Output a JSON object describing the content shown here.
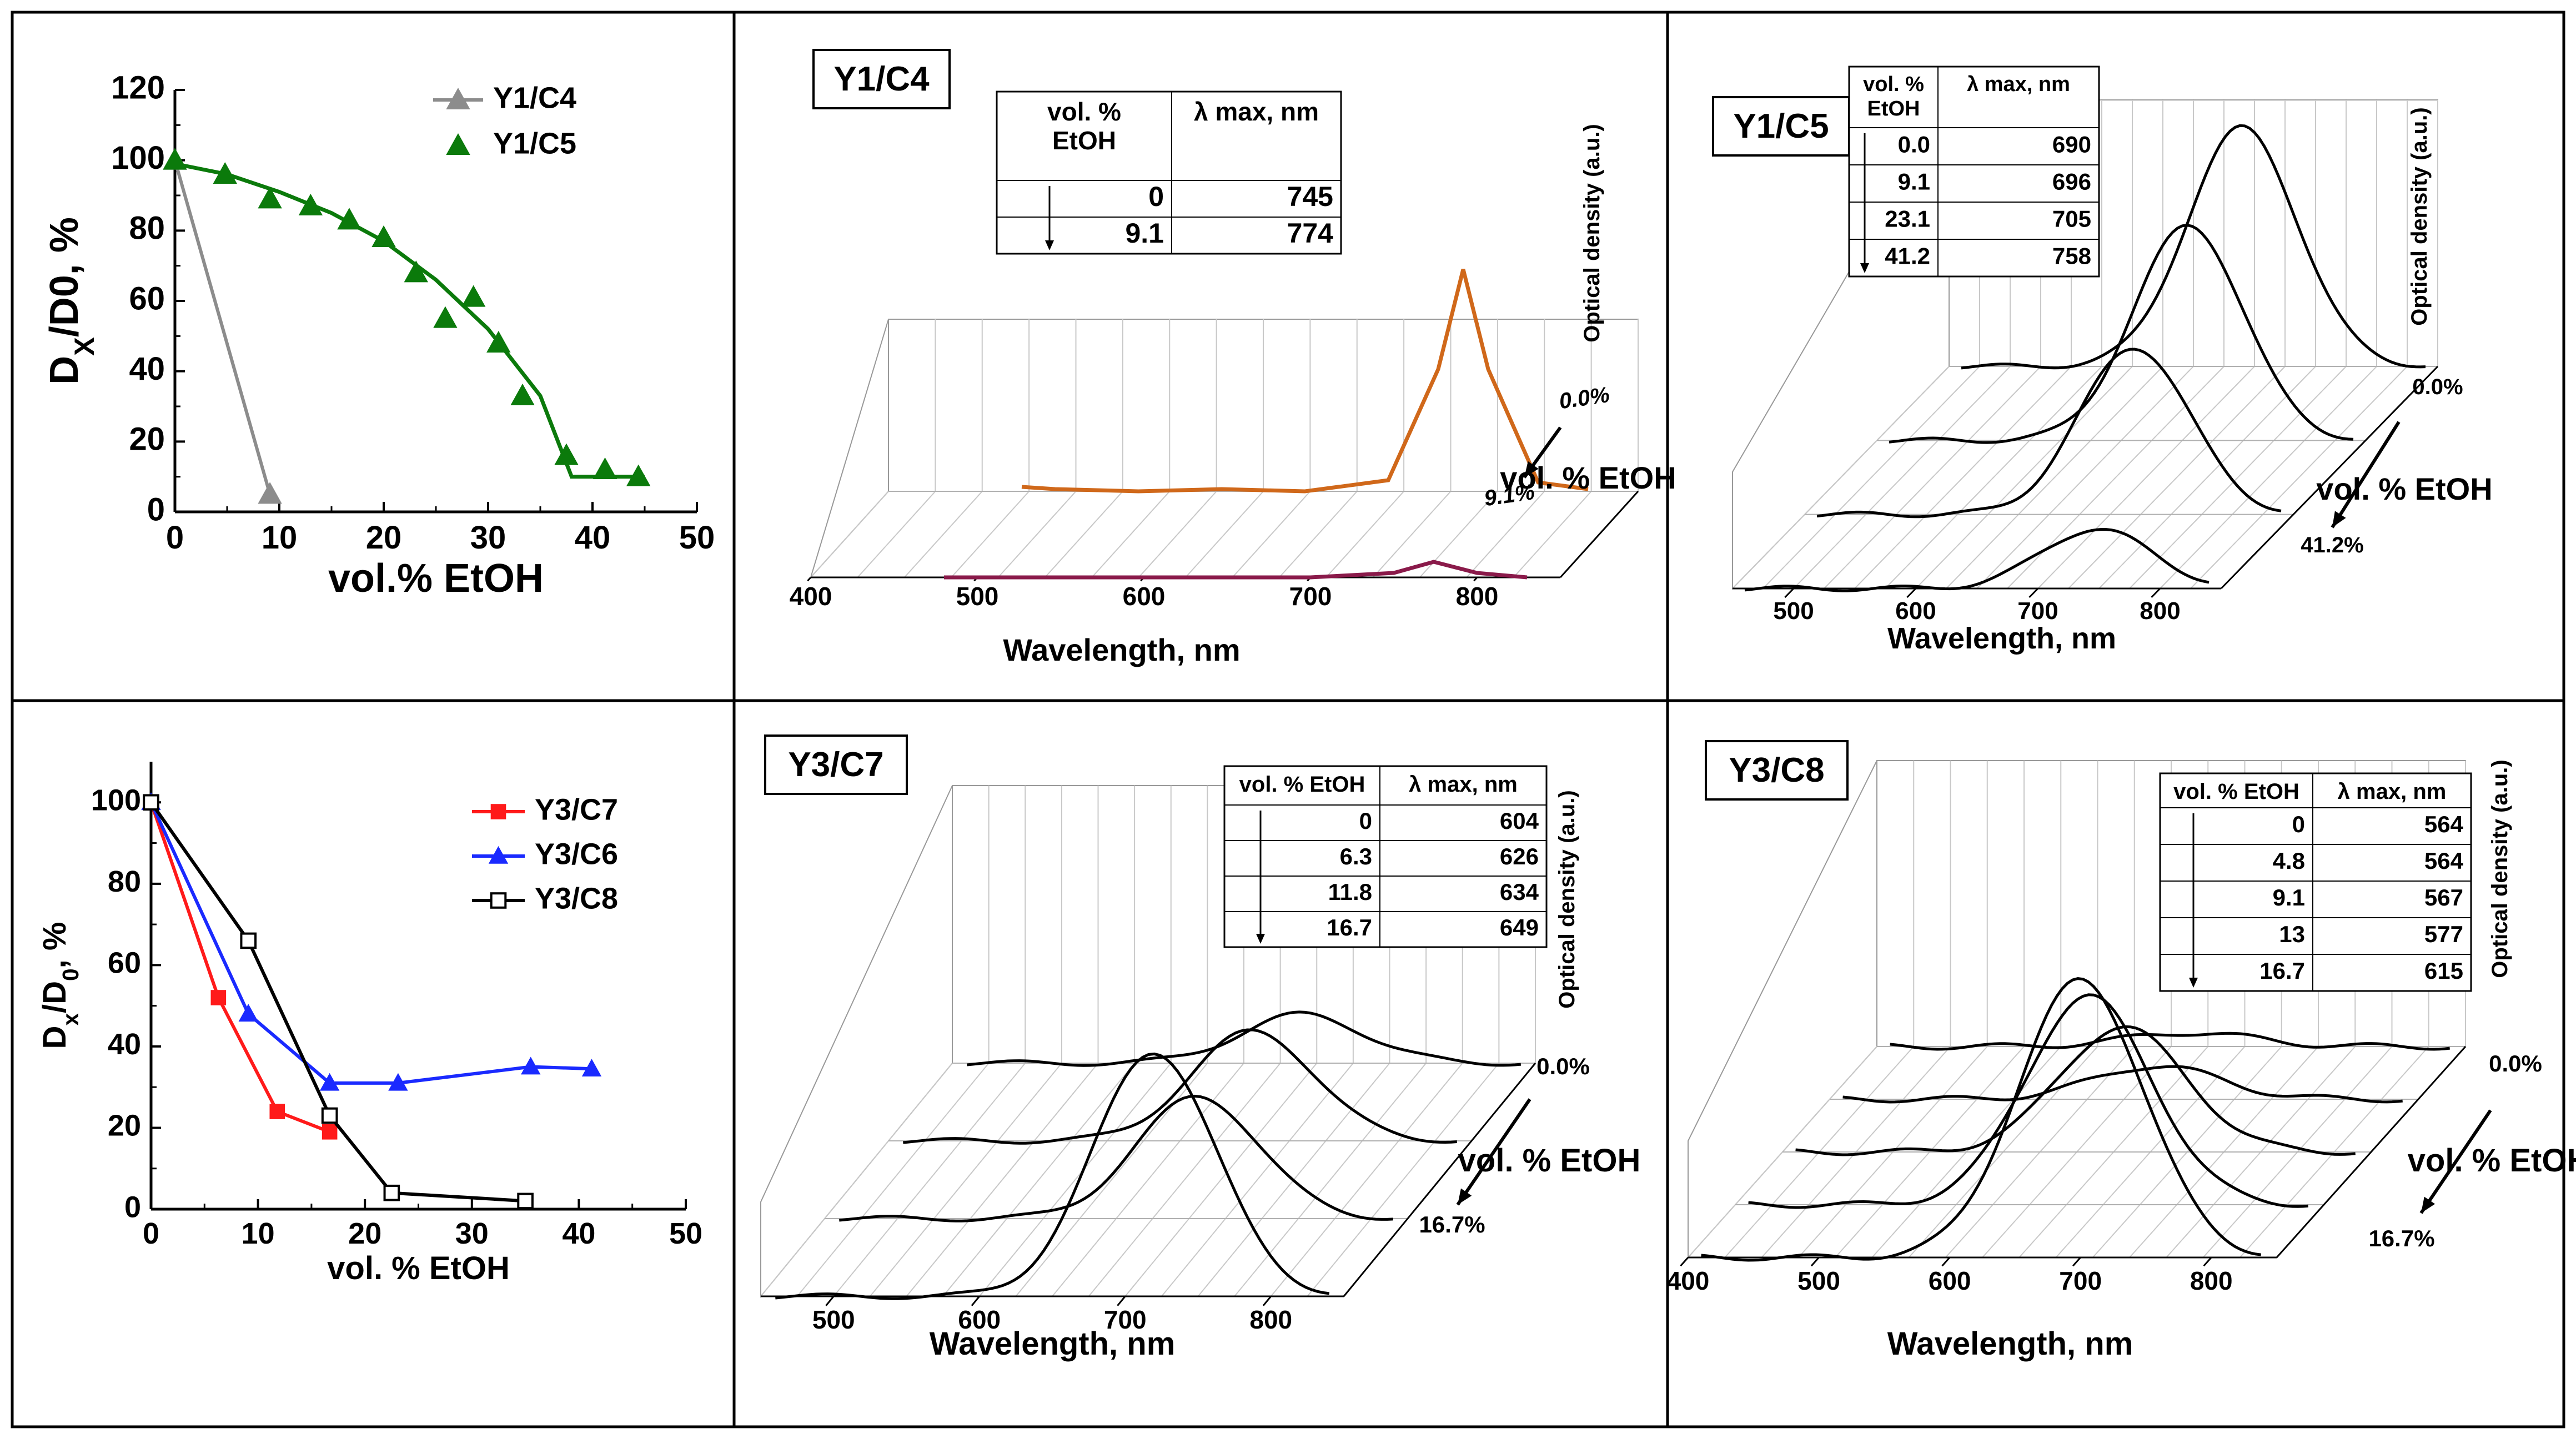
{
  "chart_data": [
    {
      "type": "line",
      "xlabel": "vol.% EtOH",
      "ylabel_main": "D",
      "ylabel_sub": "X",
      "ylabel_rest": "/D0, %",
      "xlim": [
        0,
        50
      ],
      "ylim": [
        0,
        120
      ],
      "xticks": [
        "0",
        "10",
        "20",
        "30",
        "40",
        "50"
      ],
      "yticks": [
        "0",
        "20",
        "40",
        "60",
        "80",
        "100",
        "120"
      ],
      "legend_position": "top-right",
      "series": [
        {
          "name": "Y1/C4",
          "color": "#8c8c8c",
          "marker": "triangle",
          "x": [
            0,
            9.1
          ],
          "y": [
            100,
            5
          ]
        },
        {
          "name": "Y1/C5",
          "color": "#0b7a0b",
          "marker": "triangle",
          "x": [
            0,
            4.8,
            9.1,
            13,
            16.7,
            20,
            23.1,
            25.9,
            28.6,
            31,
            33.3,
            37.5,
            41.2,
            44.4
          ],
          "y": [
            100,
            96,
            89,
            87,
            83,
            78,
            68,
            55,
            61,
            48,
            33,
            16,
            12,
            10
          ],
          "fit_x": [
            0,
            5,
            10,
            15,
            20,
            25,
            30,
            35,
            38,
            45
          ],
          "fit_y": [
            99,
            96,
            91,
            85,
            77,
            66,
            52,
            33,
            10,
            10
          ]
        }
      ]
    },
    {
      "type": "line",
      "title": "Y1/C4",
      "xlabel": "Wavelength, nm",
      "zlabel": "Optical density (a.u.)",
      "depth_label": "vol. % EtOH",
      "xlim": [
        400,
        850
      ],
      "xticks": [
        "400",
        "500",
        "600",
        "700",
        "800"
      ],
      "depth_start_label": "0.0%",
      "depth_end_label": "9.1%",
      "table": {
        "headers": [
          "vol. %\nEtOH",
          "λ max, nm"
        ],
        "rows": [
          [
            "0",
            "745"
          ],
          [
            "9.1",
            "774"
          ]
        ]
      },
      "series": [
        {
          "label": "0.0%",
          "color": "#d0681a",
          "peak_nm": 745,
          "peak_od": 1.0,
          "x": [
            480,
            500,
            550,
            600,
            650,
            700,
            730,
            745,
            760,
            790,
            820
          ],
          "y": [
            0.02,
            0.01,
            0.0,
            0.01,
            0.0,
            0.05,
            0.55,
            1.0,
            0.55,
            0.04,
            0.01
          ]
        },
        {
          "label": "9.1%",
          "color": "#8a1a4a",
          "peak_nm": 774,
          "peak_od": 0.07,
          "x": [
            480,
            550,
            600,
            650,
            700,
            750,
            774,
            800,
            830
          ],
          "y": [
            0.0,
            0.0,
            0.0,
            0.0,
            0.0,
            0.02,
            0.07,
            0.02,
            0.0
          ]
        }
      ]
    },
    {
      "type": "line",
      "title": "Y1/C5",
      "xlabel": "Wavelength, nm",
      "zlabel": "Optical density (a.u.)",
      "depth_label": "vol. % EtOH",
      "xlim": [
        450,
        850
      ],
      "xticks": [
        "500",
        "600",
        "700",
        "800"
      ],
      "depth_start_label": "0.0%",
      "depth_end_label": "41.2%",
      "table": {
        "headers": [
          "vol. %\nEtOH",
          "λ max, nm"
        ],
        "rows": [
          [
            "0.0",
            "690"
          ],
          [
            "9.1",
            "696"
          ],
          [
            "23.1",
            "705"
          ],
          [
            "41.2",
            "758"
          ]
        ]
      },
      "series": [
        {
          "label": "0.0",
          "color": "#000000",
          "peak_nm": 690,
          "peak_od": 1.0
        },
        {
          "label": "9.1",
          "color": "#000000",
          "peak_nm": 696,
          "peak_od": 0.9
        },
        {
          "label": "23.1",
          "color": "#000000",
          "peak_nm": 705,
          "peak_od": 0.7
        },
        {
          "label": "41.2",
          "color": "#000000",
          "peak_nm": 758,
          "peak_od": 0.25
        }
      ]
    },
    {
      "type": "line",
      "xlabel": "vol. % EtOH",
      "ylabel_main": "D",
      "ylabel_sub": "x",
      "ylabel_rest": "/D",
      "ylabel_sub2": "0",
      "ylabel_tail": ", %",
      "xlim": [
        0,
        50
      ],
      "ylim": [
        0,
        110
      ],
      "xticks": [
        "0",
        "10",
        "20",
        "30",
        "40",
        "50"
      ],
      "yticks": [
        "0",
        "20",
        "40",
        "60",
        "80",
        "100"
      ],
      "legend_position": "top-right",
      "series": [
        {
          "name": "Y3/C7",
          "color": "#ff1a1a",
          "marker": "square",
          "x": [
            0,
            6.3,
            11.8,
            16.7
          ],
          "y": [
            100,
            52,
            24,
            19
          ]
        },
        {
          "name": "Y3/C6",
          "color": "#1a2aff",
          "marker": "triangle",
          "x": [
            0,
            9.1,
            16.7,
            23.1,
            35.5,
            41.2
          ],
          "y": [
            100,
            48,
            31,
            31,
            35,
            34.5
          ]
        },
        {
          "name": "Y3/C8",
          "color": "#000000",
          "marker": "open-square",
          "x": [
            0,
            9.1,
            16.7,
            22.5,
            35
          ],
          "y": [
            100,
            66,
            23,
            4,
            2
          ]
        }
      ]
    },
    {
      "type": "line",
      "title": "Y3/C7",
      "xlabel": "Wavelength, nm",
      "zlabel": "Optical density (a.u.)",
      "depth_label": "vol. % EtOH",
      "xlim": [
        450,
        850
      ],
      "xticks": [
        "500",
        "600",
        "700",
        "800"
      ],
      "depth_start_label": "0.0%",
      "depth_end_label": "16.7%",
      "table": {
        "headers": [
          "vol. % EtOH",
          "λ max, nm"
        ],
        "rows": [
          [
            "0",
            "604"
          ],
          [
            "6.3",
            "626"
          ],
          [
            "11.8",
            "634"
          ],
          [
            "16.7",
            "649"
          ]
        ]
      },
      "series": [
        {
          "label": "0",
          "color": "#000000",
          "peak_nm": 604,
          "peak_od": 0.2
        },
        {
          "label": "6.3",
          "color": "#000000",
          "peak_nm": 626,
          "peak_od": 0.45
        },
        {
          "label": "11.8",
          "color": "#000000",
          "peak_nm": 634,
          "peak_od": 0.5
        },
        {
          "label": "16.7",
          "color": "#000000",
          "peak_nm": 649,
          "peak_od": 1.0
        }
      ]
    },
    {
      "type": "line",
      "title": "Y3/C8",
      "xlabel": "Wavelength, nm",
      "zlabel": "Optical density (a.u.)",
      "depth_label": "vol. % EtOH",
      "xlim": [
        400,
        850
      ],
      "xticks": [
        "400",
        "500",
        "600",
        "700",
        "800"
      ],
      "depth_start_label": "0.0%",
      "depth_end_label": "16.7%",
      "table": {
        "headers": [
          "vol. % EtOH",
          "λ max, nm"
        ],
        "rows": [
          [
            "0",
            "564"
          ],
          [
            "4.8",
            "564"
          ],
          [
            "9.1",
            "567"
          ],
          [
            "13",
            "577"
          ],
          [
            "16.7",
            "615"
          ]
        ]
      },
      "series": [
        {
          "label": "0",
          "color": "#000000",
          "peak_nm": 564,
          "peak_od": 0.05
        },
        {
          "label": "4.8",
          "color": "#000000",
          "peak_nm": 564,
          "peak_od": 0.12
        },
        {
          "label": "9.1",
          "color": "#000000",
          "peak_nm": 567,
          "peak_od": 0.45
        },
        {
          "label": "13",
          "color": "#000000",
          "peak_nm": 577,
          "peak_od": 0.75
        },
        {
          "label": "16.7",
          "color": "#000000",
          "peak_nm": 615,
          "peak_od": 1.0
        }
      ]
    }
  ]
}
